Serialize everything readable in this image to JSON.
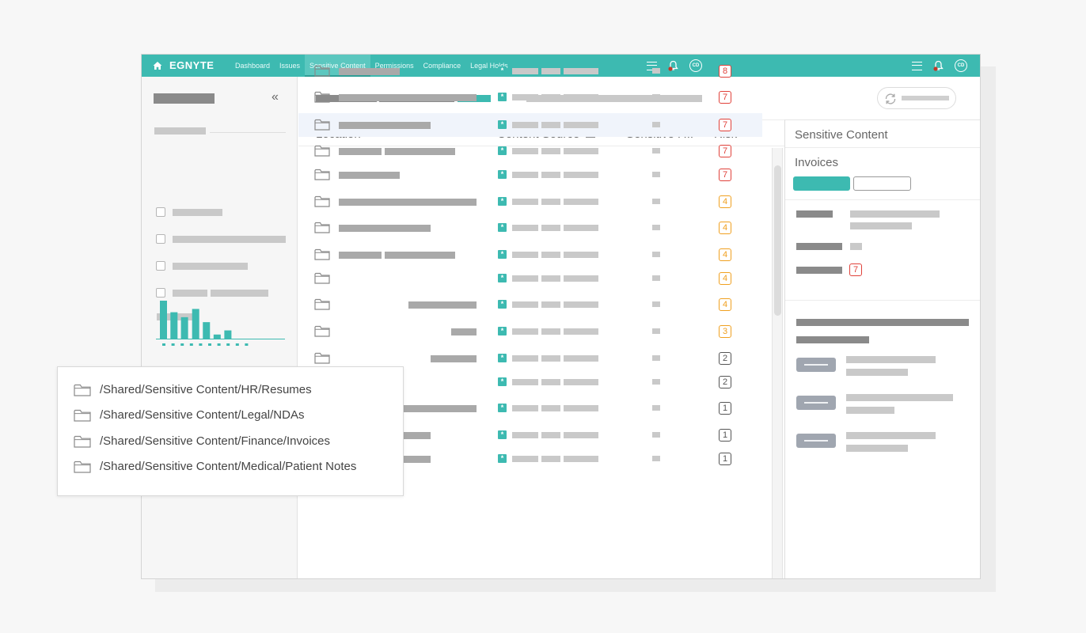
{
  "app": {
    "brand": "EGNYTE",
    "nav": [
      {
        "label": "Dashboard",
        "active": false
      },
      {
        "label": "Issues",
        "active": false
      },
      {
        "label": "Sensitive Content",
        "active": true
      },
      {
        "label": "Permissions",
        "active": false
      },
      {
        "label": "Compliance",
        "active": false
      },
      {
        "label": "Legal Holds",
        "active": false
      }
    ],
    "avatar_initials": "CD",
    "accent_color": "#3dbab1"
  },
  "sidebar": {
    "collapse_glyph": "«",
    "chart_data": {
      "type": "bar",
      "values": [
        46,
        32,
        26,
        36,
        20,
        5,
        10
      ]
    }
  },
  "table": {
    "columns": {
      "location": "Location",
      "content_source": "Content Source",
      "sensitive": "Sensitive F...",
      "risk": "Risk"
    },
    "rows": [
      {
        "risk": "8",
        "level": "red"
      },
      {
        "risk": "7",
        "level": "red"
      },
      {
        "risk": "7",
        "level": "red",
        "selected": true
      },
      {
        "risk": "7",
        "level": "red"
      },
      {
        "risk": "7",
        "level": "red"
      },
      {
        "risk": "4",
        "level": "orange"
      },
      {
        "risk": "4",
        "level": "orange"
      },
      {
        "risk": "4",
        "level": "orange"
      },
      {
        "risk": "4",
        "level": "orange"
      },
      {
        "risk": "4",
        "level": "orange"
      },
      {
        "risk": "3",
        "level": "orange"
      },
      {
        "risk": "2",
        "level": "gray"
      },
      {
        "risk": "2",
        "level": "gray"
      },
      {
        "risk": "1",
        "level": "gray"
      },
      {
        "risk": "1",
        "level": "gray"
      },
      {
        "risk": "1",
        "level": "gray"
      }
    ]
  },
  "panel": {
    "title": "Sensitive Content",
    "subtitle": "Invoices",
    "risk_value": "7"
  },
  "popup": {
    "paths": [
      "/Shared/Sensitive Content/HR/Resumes",
      "/Shared/Sensitive Content/Legal/NDAs",
      "/Shared/Sensitive Content/Finance/Invoices",
      "/Shared/Sensitive Content/Medical/Patient Notes"
    ]
  }
}
